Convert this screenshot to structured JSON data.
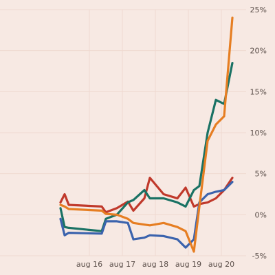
{
  "chart_data": {
    "type": "line",
    "title": "",
    "xlabel": "",
    "ylabel": "",
    "x_ticks": [
      "aug 16",
      "aug 17",
      "aug 18",
      "aug 19",
      "aug 20"
    ],
    "y_ticks": [
      "-5%",
      "0%",
      "5%",
      "10%",
      "15%",
      "20%",
      "25%"
    ],
    "ylim": [
      -5,
      25
    ],
    "grid": true,
    "legend": "none",
    "y_axis_position": "right",
    "series": [
      {
        "color": "#c0392b",
        "points": [
          [
            "aug 15 03:00",
            1.5
          ],
          [
            "aug 15 06:00",
            2.5
          ],
          [
            "aug 15 09:00",
            1.2
          ],
          [
            "aug 16 09:00",
            1.0
          ],
          [
            "aug 16 12:00",
            0.3
          ],
          [
            "aug 16 20:00",
            0.8
          ],
          [
            "aug 17 04:00",
            1.6
          ],
          [
            "aug 17 08:00",
            0.5
          ],
          [
            "aug 17 16:00",
            2.0
          ],
          [
            "aug 17 20:00",
            4.5
          ],
          [
            "aug 18 06:00",
            2.5
          ],
          [
            "aug 18 16:00",
            2.0
          ],
          [
            "aug 18 22:00",
            3.3
          ],
          [
            "aug 19 04:00",
            1.0
          ],
          [
            "aug 19 08:00",
            1.3
          ],
          [
            "aug 19 14:00",
            1.5
          ],
          [
            "aug 19 20:00",
            2.0
          ],
          [
            "aug 20 02:00",
            3.0
          ],
          [
            "aug 20 08:00",
            4.5
          ]
        ]
      },
      {
        "color": "#1a7264",
        "points": [
          [
            "aug 15 03:00",
            0.8
          ],
          [
            "aug 15 06:00",
            -1.5
          ],
          [
            "aug 15 09:00",
            -1.6
          ],
          [
            "aug 16 09:00",
            -2.0
          ],
          [
            "aug 16 12:00",
            -0.5
          ],
          [
            "aug 16 20:00",
            0.0
          ],
          [
            "aug 17 04:00",
            1.5
          ],
          [
            "aug 17 08:00",
            1.8
          ],
          [
            "aug 17 16:00",
            3.0
          ],
          [
            "aug 17 20:00",
            2.0
          ],
          [
            "aug 18 06:00",
            2.0
          ],
          [
            "aug 18 16:00",
            1.5
          ],
          [
            "aug 18 22:00",
            1.0
          ],
          [
            "aug 19 04:00",
            3.0
          ],
          [
            "aug 19 08:00",
            3.5
          ],
          [
            "aug 19 14:00",
            10.0
          ],
          [
            "aug 19 20:00",
            14.0
          ],
          [
            "aug 20 02:00",
            13.5
          ],
          [
            "aug 20 08:00",
            18.5
          ]
        ]
      },
      {
        "color": "#3b63ad",
        "points": [
          [
            "aug 15 03:00",
            -0.5
          ],
          [
            "aug 15 06:00",
            -2.5
          ],
          [
            "aug 15 09:00",
            -2.2
          ],
          [
            "aug 16 09:00",
            -2.3
          ],
          [
            "aug 16 12:00",
            -0.8
          ],
          [
            "aug 16 20:00",
            -0.8
          ],
          [
            "aug 17 04:00",
            -1.0
          ],
          [
            "aug 17 08:00",
            -3.0
          ],
          [
            "aug 17 16:00",
            -2.8
          ],
          [
            "aug 17 20:00",
            -2.5
          ],
          [
            "aug 18 06:00",
            -2.6
          ],
          [
            "aug 18 16:00",
            -3.0
          ],
          [
            "aug 18 22:00",
            -4.0
          ],
          [
            "aug 19 04:00",
            -3.0
          ],
          [
            "aug 19 08:00",
            1.5
          ],
          [
            "aug 19 14:00",
            2.5
          ],
          [
            "aug 19 20:00",
            2.8
          ],
          [
            "aug 20 02:00",
            3.0
          ],
          [
            "aug 20 08:00",
            4.0
          ]
        ]
      },
      {
        "color": "#e67e22",
        "points": [
          [
            "aug 15 03:00",
            1.2
          ],
          [
            "aug 15 06:00",
            1.0
          ],
          [
            "aug 15 09:00",
            0.7
          ],
          [
            "aug 16 09:00",
            0.5
          ],
          [
            "aug 16 12:00",
            0.1
          ],
          [
            "aug 16 20:00",
            0.0
          ],
          [
            "aug 17 04:00",
            -0.5
          ],
          [
            "aug 17 08:00",
            -1.0
          ],
          [
            "aug 17 16:00",
            -1.2
          ],
          [
            "aug 17 20:00",
            -1.3
          ],
          [
            "aug 18 06:00",
            -1.0
          ],
          [
            "aug 18 16:00",
            -1.5
          ],
          [
            "aug 18 22:00",
            -2.0
          ],
          [
            "aug 19 04:00",
            -4.5
          ],
          [
            "aug 19 08:00",
            1.0
          ],
          [
            "aug 19 14:00",
            9.0
          ],
          [
            "aug 19 20:00",
            11.0
          ],
          [
            "aug 20 02:00",
            12.0
          ],
          [
            "aug 20 08:00",
            24.0
          ]
        ]
      }
    ]
  }
}
